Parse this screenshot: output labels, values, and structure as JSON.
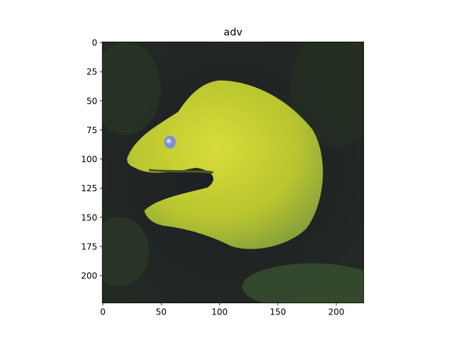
{
  "chart_data": {
    "type": "image",
    "title": "adv",
    "xlim": [
      -0.5,
      223.5
    ],
    "ylim": [
      223.5,
      -0.5
    ],
    "xticks": [
      0,
      50,
      100,
      150,
      200
    ],
    "yticks": [
      0,
      25,
      50,
      75,
      100,
      125,
      150,
      175,
      200
    ]
  }
}
